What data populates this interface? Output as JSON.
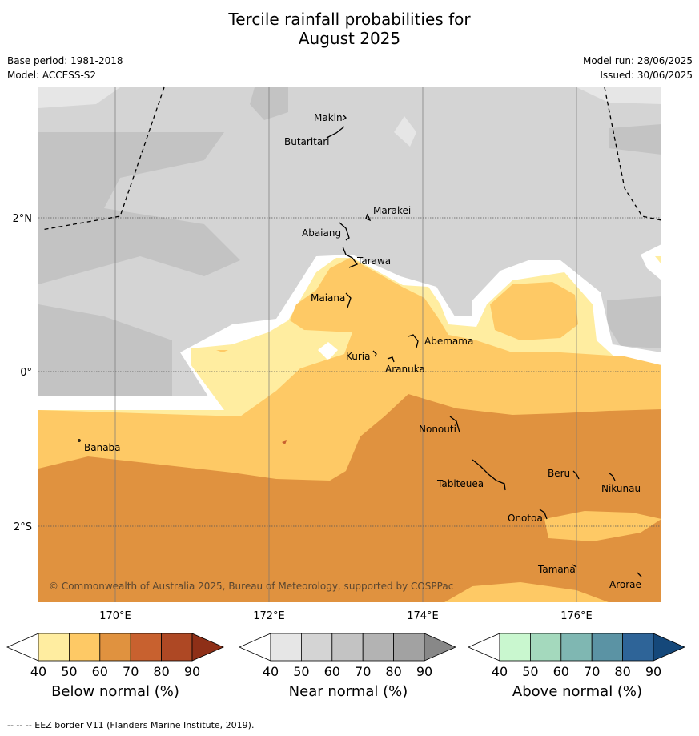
{
  "title_line1": "Tercile rainfall probabilities for",
  "title_line2": "August 2025",
  "meta": {
    "base_period": "Base period: 1981-2018",
    "model": "Model: ACCESS-S2",
    "model_run": "Model run: 28/06/2025",
    "issued": "Issued: 30/06/2025"
  },
  "axes": {
    "lat_labels": [
      "2°N",
      "0°",
      "2°S"
    ],
    "lon_labels": [
      "170°E",
      "172°E",
      "174°E",
      "176°E"
    ]
  },
  "places": [
    {
      "name": "Makin"
    },
    {
      "name": "Butaritari"
    },
    {
      "name": "Marakei"
    },
    {
      "name": "Abaiang"
    },
    {
      "name": "Tarawa"
    },
    {
      "name": "Maiana"
    },
    {
      "name": "Abemama"
    },
    {
      "name": "Kuria"
    },
    {
      "name": "Aranuka"
    },
    {
      "name": "Banaba"
    },
    {
      "name": "Nonouti"
    },
    {
      "name": "Tabiteuea"
    },
    {
      "name": "Beru"
    },
    {
      "name": "Nikunau"
    },
    {
      "name": "Onotoa"
    },
    {
      "name": "Tamana"
    },
    {
      "name": "Arorae"
    }
  ],
  "copyright": "© Commonwealth of Australia 2025, Bureau of Meteorology, supported by COSPPac",
  "colorbars": [
    {
      "label": "Below normal (%)",
      "ticks": [
        "40",
        "50",
        "60",
        "70",
        "80",
        "90"
      ],
      "colors": [
        "#ffeda0",
        "#fec965",
        "#e0923f",
        "#c8612f",
        "#ae4824",
        "#8e2f17"
      ]
    },
    {
      "label": "Near normal (%)",
      "ticks": [
        "40",
        "50",
        "60",
        "70",
        "80",
        "90"
      ],
      "colors": [
        "#e6e6e6",
        "#d4d4d4",
        "#c3c3c3",
        "#b3b3b3",
        "#a2a2a2",
        "#888888"
      ]
    },
    {
      "label": "Above normal (%)",
      "ticks": [
        "40",
        "50",
        "60",
        "70",
        "80",
        "90"
      ],
      "colors": [
        "#c9f7cf",
        "#a4d9bd",
        "#7fb7b2",
        "#5b93a4",
        "#2e6498",
        "#15487a"
      ]
    }
  ],
  "footer": "--  --  -- EEZ border V11 (Flanders Marine Institute, 2019)."
}
